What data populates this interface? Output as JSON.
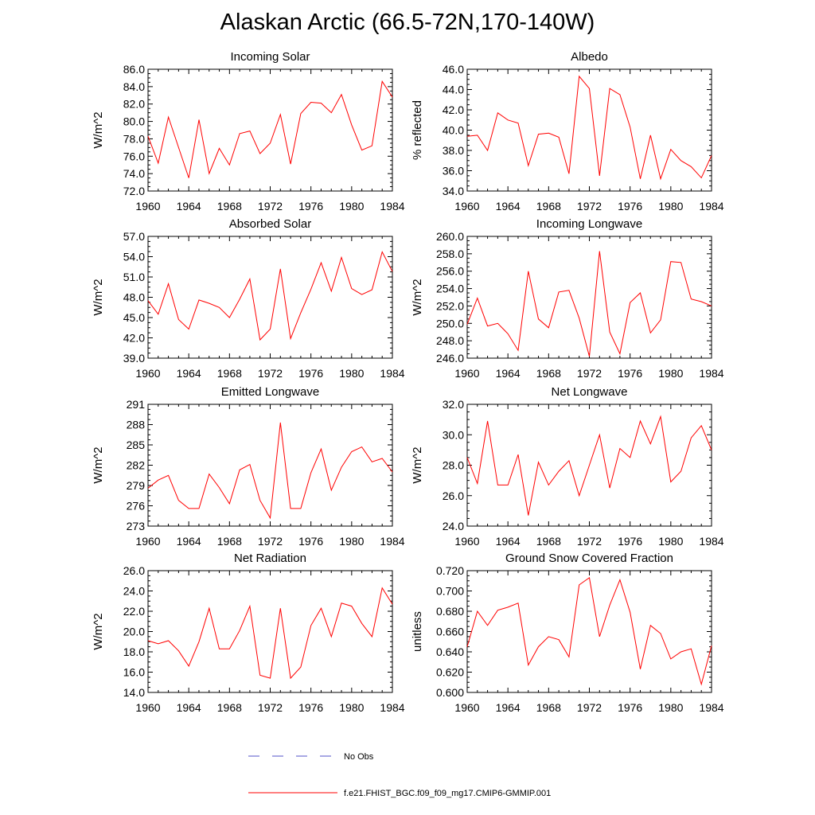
{
  "figure_title": "Alaskan Arctic (66.5-72N,170-140W)",
  "chart_data": [
    {
      "type": "line",
      "title": "Incoming Solar",
      "ylabel": "W/m^2",
      "x": [
        1960,
        1961,
        1962,
        1963,
        1964,
        1965,
        1966,
        1967,
        1968,
        1969,
        1970,
        1971,
        1972,
        1973,
        1974,
        1975,
        1976,
        1977,
        1978,
        1979,
        1980,
        1981,
        1982,
        1983,
        1984
      ],
      "values": [
        78.3,
        75.2,
        80.5,
        77.0,
        73.5,
        80.2,
        74.0,
        76.9,
        75.0,
        78.6,
        78.9,
        76.3,
        77.5,
        80.8,
        75.1,
        80.9,
        82.2,
        82.1,
        81.0,
        83.1,
        79.6,
        76.7,
        77.2,
        84.6,
        82.8
      ],
      "ylim": [
        72.0,
        86.0
      ],
      "yticks": [
        "72.0",
        "74.0",
        "76.0",
        "78.0",
        "80.0",
        "82.0",
        "84.0",
        "86.0"
      ],
      "xlim": [
        1960,
        1984
      ],
      "xticks": [
        "1960",
        "1964",
        "1968",
        "1972",
        "1976",
        "1980",
        "1984"
      ]
    },
    {
      "type": "line",
      "title": "Albedo",
      "ylabel": "% reflected",
      "x": [
        1960,
        1961,
        1962,
        1963,
        1964,
        1965,
        1966,
        1967,
        1968,
        1969,
        1970,
        1971,
        1972,
        1973,
        1974,
        1975,
        1976,
        1977,
        1978,
        1979,
        1980,
        1981,
        1982,
        1983,
        1984
      ],
      "values": [
        39.4,
        39.5,
        38.0,
        41.7,
        41.0,
        40.7,
        36.5,
        39.6,
        39.7,
        39.3,
        35.7,
        45.3,
        44.1,
        35.5,
        44.1,
        43.5,
        40.3,
        35.2,
        39.5,
        35.2,
        38.1,
        37.0,
        36.4,
        35.3,
        37.5
      ],
      "ylim": [
        34.0,
        46.0
      ],
      "yticks": [
        "34.0",
        "36.0",
        "38.0",
        "40.0",
        "42.0",
        "44.0",
        "46.0"
      ],
      "xlim": [
        1960,
        1984
      ],
      "xticks": [
        "1960",
        "1964",
        "1968",
        "1972",
        "1976",
        "1980",
        "1984"
      ]
    },
    {
      "type": "line",
      "title": "Absorbed Solar",
      "ylabel": "W/m^2",
      "x": [
        1960,
        1961,
        1962,
        1963,
        1964,
        1965,
        1966,
        1967,
        1968,
        1969,
        1970,
        1971,
        1972,
        1973,
        1974,
        1975,
        1976,
        1977,
        1978,
        1979,
        1980,
        1981,
        1982,
        1983,
        1984
      ],
      "values": [
        47.5,
        45.5,
        50.0,
        44.7,
        43.3,
        47.6,
        47.1,
        46.5,
        45.0,
        47.7,
        50.7,
        41.7,
        43.3,
        52.2,
        41.9,
        45.7,
        49.2,
        53.1,
        48.9,
        53.9,
        49.3,
        48.4,
        49.1,
        54.7,
        51.8
      ],
      "ylim": [
        39.0,
        57.0
      ],
      "yticks": [
        "39.0",
        "42.0",
        "45.0",
        "48.0",
        "51.0",
        "54.0",
        "57.0"
      ],
      "xlim": [
        1960,
        1984
      ],
      "xticks": [
        "1960",
        "1964",
        "1968",
        "1972",
        "1976",
        "1980",
        "1984"
      ]
    },
    {
      "type": "line",
      "title": "Incoming Longwave",
      "ylabel": "W/m^2",
      "x": [
        1960,
        1961,
        1962,
        1963,
        1964,
        1965,
        1966,
        1967,
        1968,
        1969,
        1970,
        1971,
        1972,
        1973,
        1974,
        1975,
        1976,
        1977,
        1978,
        1979,
        1980,
        1981,
        1982,
        1983,
        1984
      ],
      "values": [
        249.9,
        252.9,
        249.7,
        250.0,
        248.8,
        246.9,
        256.0,
        250.5,
        249.5,
        253.6,
        253.8,
        250.6,
        246.2,
        258.3,
        249.0,
        246.5,
        252.4,
        253.5,
        248.9,
        250.4,
        257.1,
        257.0,
        252.8,
        252.5,
        252.0
      ],
      "ylim": [
        246.0,
        260.0
      ],
      "yticks": [
        "246.0",
        "248.0",
        "250.0",
        "252.0",
        "254.0",
        "256.0",
        "258.0",
        "260.0"
      ],
      "xlim": [
        1960,
        1984
      ],
      "xticks": [
        "1960",
        "1964",
        "1968",
        "1972",
        "1976",
        "1980",
        "1984"
      ]
    },
    {
      "type": "line",
      "title": "Emitted Longwave",
      "ylabel": "W/m^2",
      "x": [
        1960,
        1961,
        1962,
        1963,
        1964,
        1965,
        1966,
        1967,
        1968,
        1969,
        1970,
        1971,
        1972,
        1973,
        1974,
        1975,
        1976,
        1977,
        1978,
        1979,
        1980,
        1981,
        1982,
        1983,
        1984
      ],
      "values": [
        278.6,
        279.8,
        280.5,
        276.8,
        275.6,
        275.6,
        280.7,
        278.7,
        276.3,
        281.3,
        282.1,
        276.8,
        274.2,
        288.3,
        275.6,
        275.6,
        280.9,
        284.4,
        278.3,
        281.7,
        284.0,
        284.7,
        282.5,
        283.0,
        281.0
      ],
      "ylim": [
        273,
        291
      ],
      "yticks": [
        "273",
        "276",
        "279",
        "282",
        "285",
        "288",
        "291"
      ],
      "xlim": [
        1960,
        1984
      ],
      "xticks": [
        "1960",
        "1964",
        "1968",
        "1972",
        "1976",
        "1980",
        "1984"
      ]
    },
    {
      "type": "line",
      "title": "Net Longwave",
      "ylabel": "W/m^2",
      "x": [
        1960,
        1961,
        1962,
        1963,
        1964,
        1965,
        1966,
        1967,
        1968,
        1969,
        1970,
        1971,
        1972,
        1973,
        1974,
        1975,
        1976,
        1977,
        1978,
        1979,
        1980,
        1981,
        1982,
        1983,
        1984
      ],
      "values": [
        28.5,
        26.8,
        30.9,
        26.7,
        26.7,
        28.7,
        24.7,
        28.2,
        26.7,
        27.6,
        28.3,
        26.0,
        28.0,
        30.0,
        26.5,
        29.1,
        28.5,
        30.9,
        29.4,
        31.2,
        26.9,
        27.6,
        29.8,
        30.6,
        29.0
      ],
      "ylim": [
        24.0,
        32.0
      ],
      "yticks": [
        "24.0",
        "26.0",
        "28.0",
        "30.0",
        "32.0"
      ],
      "xlim": [
        1960,
        1984
      ],
      "xticks": [
        "1960",
        "1964",
        "1968",
        "1972",
        "1976",
        "1980",
        "1984"
      ]
    },
    {
      "type": "line",
      "title": "Net Radiation",
      "ylabel": "W/m^2",
      "x": [
        1960,
        1961,
        1962,
        1963,
        1964,
        1965,
        1966,
        1967,
        1968,
        1969,
        1970,
        1971,
        1972,
        1973,
        1974,
        1975,
        1976,
        1977,
        1978,
        1979,
        1980,
        1981,
        1982,
        1983,
        1984
      ],
      "values": [
        19.1,
        18.8,
        19.1,
        18.1,
        16.6,
        19.0,
        22.3,
        18.3,
        18.3,
        20.1,
        22.5,
        15.7,
        15.4,
        22.3,
        15.4,
        16.5,
        20.6,
        22.3,
        19.5,
        22.8,
        22.5,
        20.8,
        19.5,
        24.3,
        22.7
      ],
      "ylim": [
        14.0,
        26.0
      ],
      "yticks": [
        "14.0",
        "16.0",
        "18.0",
        "20.0",
        "22.0",
        "24.0",
        "26.0"
      ],
      "xlim": [
        1960,
        1984
      ],
      "xticks": [
        "1960",
        "1964",
        "1968",
        "1972",
        "1976",
        "1980",
        "1984"
      ]
    },
    {
      "type": "line",
      "title": "Ground Snow Covered Fraction",
      "ylabel": "unitless",
      "x": [
        1960,
        1961,
        1962,
        1963,
        1964,
        1965,
        1966,
        1967,
        1968,
        1969,
        1970,
        1971,
        1972,
        1973,
        1974,
        1975,
        1976,
        1977,
        1978,
        1979,
        1980,
        1981,
        1982,
        1983,
        1984
      ],
      "values": [
        0.645,
        0.68,
        0.666,
        0.681,
        0.684,
        0.688,
        0.627,
        0.645,
        0.655,
        0.652,
        0.635,
        0.706,
        0.713,
        0.655,
        0.686,
        0.711,
        0.679,
        0.623,
        0.666,
        0.658,
        0.633,
        0.64,
        0.643,
        0.608,
        0.646
      ],
      "ylim": [
        0.6,
        0.72
      ],
      "yticks": [
        "0.600",
        "0.620",
        "0.640",
        "0.660",
        "0.680",
        "0.700",
        "0.720"
      ],
      "xlim": [
        1960,
        1984
      ],
      "xticks": [
        "1960",
        "1964",
        "1968",
        "1972",
        "1976",
        "1980",
        "1984"
      ]
    }
  ],
  "legend": {
    "items": [
      {
        "label": "No Obs",
        "color": "#5050c8",
        "style": "dashed"
      },
      {
        "label": "f.e21.FHIST_BGC.f09_f09_mg17.CMIP6-GMMIP.001",
        "color": "#ff0000",
        "style": "solid"
      }
    ]
  },
  "colors": {
    "series": "#ff0000",
    "axis": "#000000"
  }
}
